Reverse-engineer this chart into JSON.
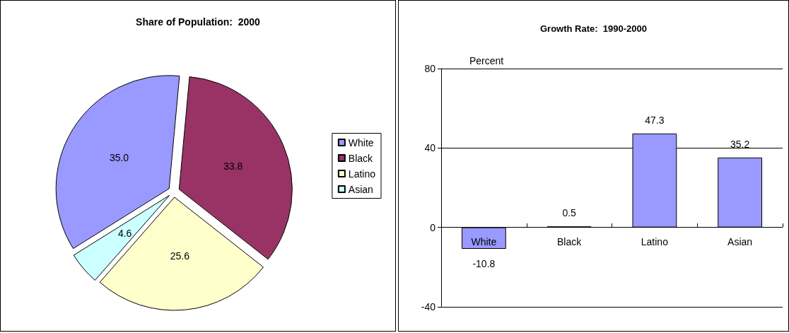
{
  "chart_data": [
    {
      "type": "pie",
      "title": "Share of Population:  2000",
      "categories": [
        "White",
        "Black",
        "Latino",
        "Asian"
      ],
      "values": [
        35.0,
        33.8,
        25.6,
        4.6
      ],
      "colors": [
        "#9999ff",
        "#993366",
        "#ffffcc",
        "#ccffff"
      ],
      "value_labels": [
        "35.0",
        "33.8",
        "25.6",
        "4.6"
      ],
      "legend": "right"
    },
    {
      "type": "bar",
      "title": "Growth Rate:  1990-2000",
      "ylabel": "Percent",
      "categories": [
        "White",
        "Black",
        "Latino",
        "Asian"
      ],
      "values": [
        -10.8,
        0.5,
        47.3,
        35.2
      ],
      "color": "#9999ff",
      "ylim": [
        -40,
        80
      ],
      "yticks": [
        -40,
        0,
        40,
        80
      ],
      "grid": "y",
      "value_labels": [
        "-10.8",
        "0.5",
        "47.3",
        "35.2"
      ]
    }
  ]
}
